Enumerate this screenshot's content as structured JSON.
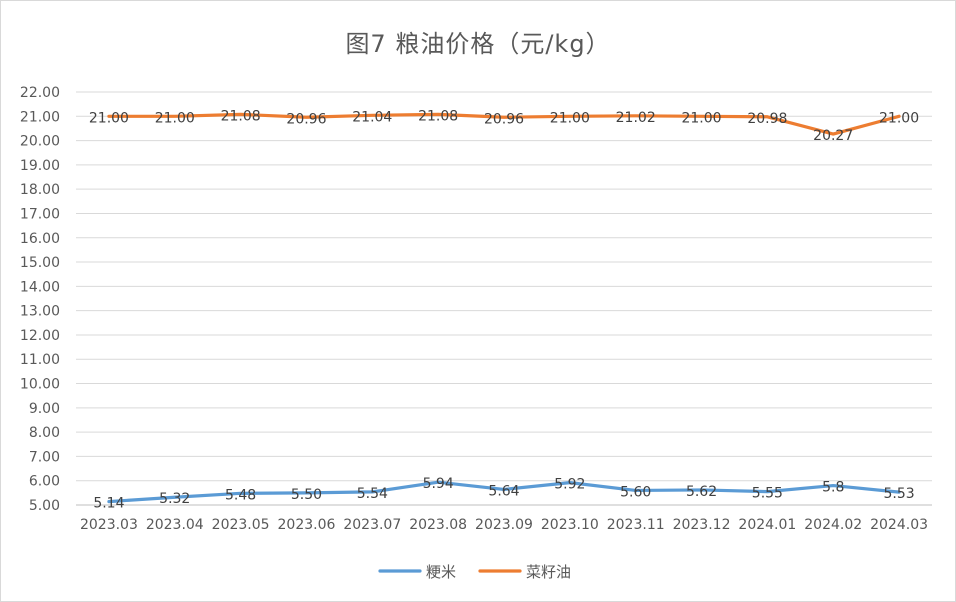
{
  "chart_data": {
    "type": "line",
    "title": "图7  粮油价格（元/kg）",
    "categories": [
      "2023.03",
      "2023.04",
      "2023.05",
      "2023.06",
      "2023.07",
      "2023.08",
      "2023.09",
      "2023.10",
      "2023.11",
      "2023.12",
      "2024.01",
      "2024.02",
      "2024.03"
    ],
    "y_ticks": [
      "5.00",
      "6.00",
      "7.00",
      "8.00",
      "9.00",
      "10.00",
      "11.00",
      "12.00",
      "13.00",
      "14.00",
      "15.00",
      "16.00",
      "17.00",
      "18.00",
      "19.00",
      "20.00",
      "21.00",
      "22.00"
    ],
    "ylim": [
      5,
      22
    ],
    "grid": true,
    "legend_position": "bottom",
    "series": [
      {
        "name": "粳米",
        "color": "#5b9bd5",
        "values": [
          5.14,
          5.32,
          5.48,
          5.5,
          5.54,
          5.94,
          5.64,
          5.92,
          5.6,
          5.62,
          5.55,
          5.8,
          5.53
        ],
        "labels": [
          "5.14",
          "5.32",
          "5.48",
          "5.50",
          "5.54",
          "5.94",
          "5.64",
          "5.92",
          "5.60",
          "5.62",
          "5.55",
          "5.8",
          "5.53"
        ]
      },
      {
        "name": "菜籽油",
        "color": "#ed7d31",
        "values": [
          21.0,
          21.0,
          21.08,
          20.96,
          21.04,
          21.08,
          20.96,
          21.0,
          21.02,
          21.0,
          20.98,
          20.27,
          21.0
        ],
        "labels": [
          "21.00",
          "21.00",
          "21.08",
          "20.96",
          "21.04",
          "21.08",
          "20.96",
          "21.00",
          "21.02",
          "21.00",
          "20.98",
          "20.27",
          "21.00"
        ]
      }
    ]
  }
}
